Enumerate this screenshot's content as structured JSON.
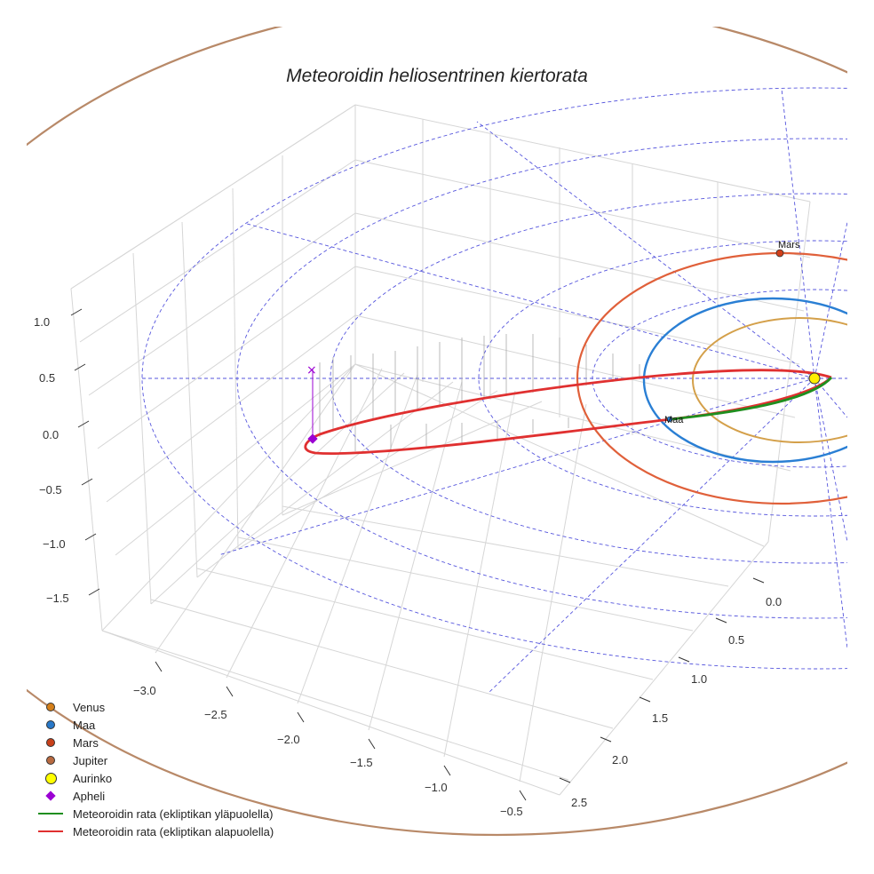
{
  "chart_data": {
    "type": "scatter3d",
    "title": "Meteoroidin heliosentrinen kiertorata",
    "axes": {
      "x": {
        "ticks": [
          "−3.0",
          "−2.5",
          "−2.0",
          "−1.5",
          "−1.0",
          "−0.5"
        ],
        "range": [
          -3.2,
          -0.3
        ]
      },
      "y": {
        "ticks": [
          "0.0",
          "0.5",
          "1.0",
          "1.5",
          "2.0",
          "2.5"
        ],
        "range": [
          -0.2,
          2.7
        ]
      },
      "z": {
        "ticks": [
          "1.0",
          "0.5",
          "0.0",
          "−0.5",
          "−1.0",
          "−1.5"
        ],
        "range": [
          -1.7,
          1.2
        ]
      }
    },
    "planets": [
      {
        "name": "Venus",
        "label": "",
        "color": "#d4a04a"
      },
      {
        "name": "Maa",
        "label": "Maa",
        "color": "#2a7fd4"
      },
      {
        "name": "Mars",
        "label": "Mars",
        "color": "#e0603a"
      },
      {
        "name": "Jupiter",
        "label": "",
        "color": "#b88968"
      }
    ],
    "orbit": {
      "above_color": "#1f8f1f",
      "below_color": "#e03030",
      "aphelion_marker": "×",
      "aphelion_color": "#9b00d3"
    },
    "sun_color": "#ffee00"
  },
  "legend": [
    {
      "label": "Venus",
      "type": "dot",
      "color": "#d47f1a"
    },
    {
      "label": "Maa",
      "type": "dot",
      "color": "#2878c8"
    },
    {
      "label": "Mars",
      "type": "dot",
      "color": "#c8401a"
    },
    {
      "label": "Jupiter",
      "type": "dot",
      "color": "#b86a40"
    },
    {
      "label": "Aurinko",
      "type": "bigdot",
      "color": "#ffff00"
    },
    {
      "label": "Apheli",
      "type": "diamond",
      "color": "#9b00d3"
    },
    {
      "label": "Meteoroidin rata (ekliptikan yläpuolella)",
      "type": "line",
      "color": "#1f8f1f"
    },
    {
      "label": "Meteoroidin rata (ekliptikan alapuolella)",
      "type": "line",
      "color": "#e03030"
    }
  ]
}
